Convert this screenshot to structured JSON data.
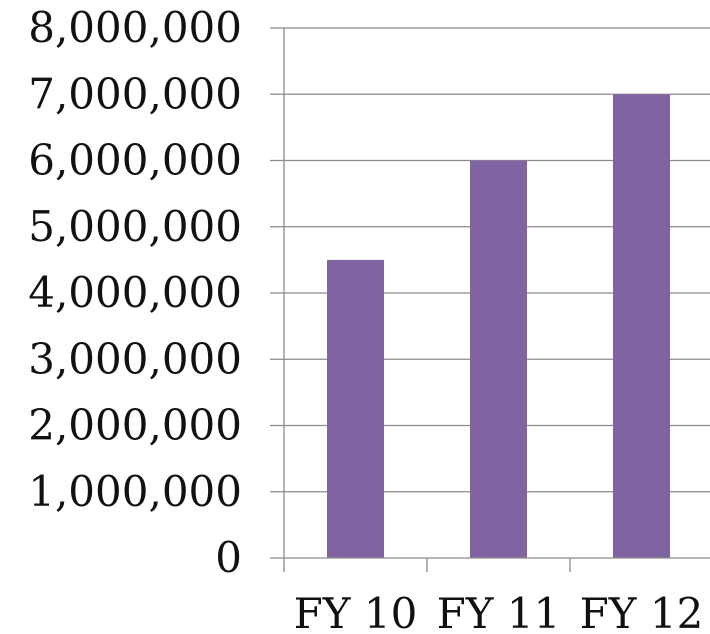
{
  "chart_data": {
    "type": "bar",
    "categories": [
      "FY 10",
      "FY 11",
      "FY 12"
    ],
    "series": [
      {
        "values": [
          4500000,
          6000000,
          7000000
        ],
        "color": "#8064a2"
      }
    ],
    "y_ticks": [
      0,
      1000000,
      2000000,
      3000000,
      4000000,
      5000000,
      6000000,
      7000000,
      8000000
    ],
    "y_tick_labels": [
      "0",
      "1,000,000",
      "2,000,000",
      "3,000,000",
      "4,000,000",
      "5,000,000",
      "6,000,000",
      "7,000,000",
      "8,000,000"
    ],
    "ylim": [
      0,
      8000000
    ],
    "grid": true,
    "legend": "none",
    "title": "",
    "xlabel": "",
    "ylabel": ""
  }
}
